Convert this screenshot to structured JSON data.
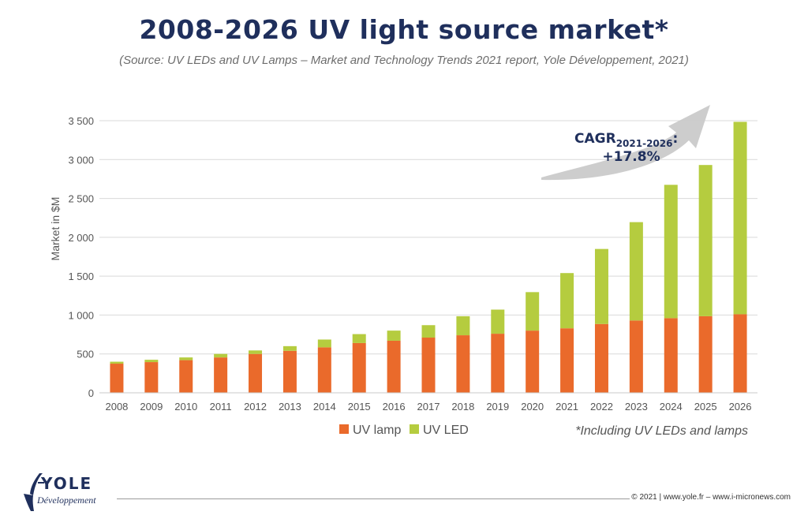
{
  "header": {
    "title": "2008-2026 UV light source market*",
    "subtitle": "(Source: UV LEDs and UV Lamps – Market and Technology Trends 2021 report, Yole Développement, 2021)"
  },
  "annotation": {
    "cagr_label": "CAGR",
    "cagr_sub": "2021-2026",
    "cagr_colon": ":",
    "cagr_value": "+17.8%"
  },
  "footnote": "*Including UV LEDs and lamps",
  "footer": {
    "logo_word": "YOLE",
    "logo_sub": "Développement",
    "copyright": "© 2021 | www.yole.fr – www.i-micronews.com"
  },
  "colors": {
    "uv_lamp": "#ea6a2b",
    "uv_led": "#b5cc3f",
    "title": "#1f2f5c",
    "grid": "#d9d9d9",
    "arrow": "#c8c8c8"
  },
  "chart_data": {
    "type": "bar",
    "stacked": true,
    "categories": [
      "2008",
      "2009",
      "2010",
      "2011",
      "2012",
      "2013",
      "2014",
      "2015",
      "2016",
      "2017",
      "2018",
      "2019",
      "2020",
      "2021",
      "2022",
      "2023",
      "2024",
      "2025",
      "2026"
    ],
    "series": [
      {
        "name": "UV lamp",
        "values": [
          375,
          395,
          420,
          455,
          500,
          540,
          585,
          640,
          670,
          710,
          740,
          760,
          800,
          830,
          885,
          930,
          960,
          985,
          1010
        ]
      },
      {
        "name": "UV LED",
        "values": [
          25,
          30,
          35,
          45,
          45,
          60,
          100,
          115,
          130,
          160,
          245,
          310,
          495,
          710,
          965,
          1265,
          1715,
          1945,
          2475
        ]
      }
    ],
    "ylabel": "Market in $M",
    "ylim": [
      0,
      3500
    ],
    "yticks": [
      0,
      500,
      1000,
      1500,
      2000,
      2500,
      3000,
      3500
    ],
    "ytick_labels": [
      "0",
      "500",
      "1 000",
      "1 500",
      "2 000",
      "2 500",
      "3 000",
      "3 500"
    ],
    "grid": true,
    "legend_position": "bottom-center"
  }
}
